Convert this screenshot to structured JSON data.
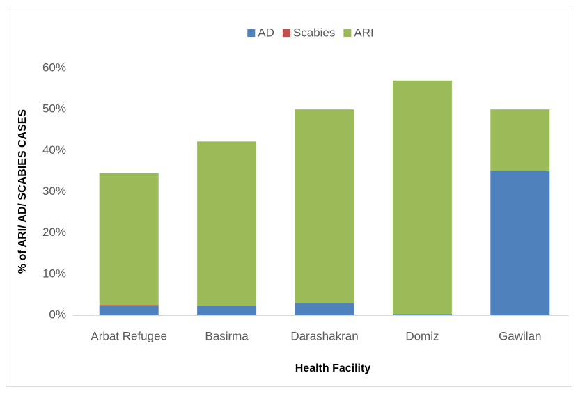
{
  "chart_data": {
    "type": "stacked_bar",
    "x_label": "Health Facility",
    "y_label": "% of ARI/ AD/ SCABIES CASES",
    "categories": [
      "Arbat Refugee",
      "Basirma",
      "Darashakran",
      "Domiz",
      "Gawilan"
    ],
    "series": [
      {
        "name": "AD",
        "color": "#4f81bd",
        "values": [
          2.2,
          2.3,
          3.0,
          0.3,
          35
        ]
      },
      {
        "name": "Scabies",
        "color": "#c0504d",
        "values": [
          0.3,
          0,
          0,
          0,
          0
        ]
      },
      {
        "name": "ARI",
        "color": "#9bbb59",
        "values": [
          32.0,
          39.9,
          47.0,
          56.7,
          15
        ]
      }
    ],
    "ylim": [
      0,
      60
    ],
    "yticks": [
      {
        "value": 0,
        "label": "0%"
      },
      {
        "value": 10,
        "label": "10%"
      },
      {
        "value": 20,
        "label": "20%"
      },
      {
        "value": 30,
        "label": "30%"
      },
      {
        "value": 40,
        "label": "40%"
      },
      {
        "value": 50,
        "label": "50%"
      },
      {
        "value": 60,
        "label": "60%"
      }
    ],
    "grid": false,
    "legend": "top"
  }
}
